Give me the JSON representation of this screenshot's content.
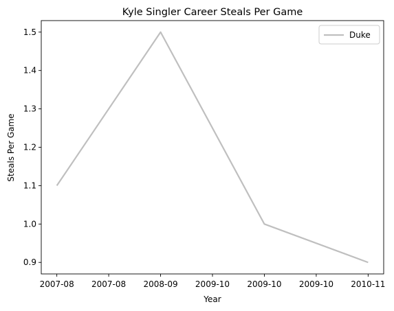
{
  "chart_data": {
    "type": "line",
    "title": "Kyle Singler Career Steals Per Game",
    "xlabel": "Year",
    "ylabel": "Steals Per Game",
    "x_tick_labels": [
      "2007-08",
      "2007-08",
      "2008-09",
      "2009-10",
      "2009-10",
      "2009-10",
      "2010-11"
    ],
    "x_tick_values": [
      0,
      0.5,
      1,
      1.5,
      2,
      2.5,
      3
    ],
    "xlim": [
      -0.15,
      3.15
    ],
    "y_ticks": [
      0.9,
      1.0,
      1.1,
      1.2,
      1.3,
      1.4,
      1.5
    ],
    "y_tick_labels": [
      "0.9",
      "1.0",
      "1.1",
      "1.2",
      "1.3",
      "1.4",
      "1.5"
    ],
    "ylim": [
      0.87,
      1.53
    ],
    "grid": false,
    "legend_position": "top-right",
    "series": [
      {
        "name": "Duke",
        "color": "#bfbfbf",
        "x": [
          0,
          1,
          2,
          3
        ],
        "y": [
          1.1,
          1.5,
          1.0,
          0.9
        ]
      }
    ]
  }
}
